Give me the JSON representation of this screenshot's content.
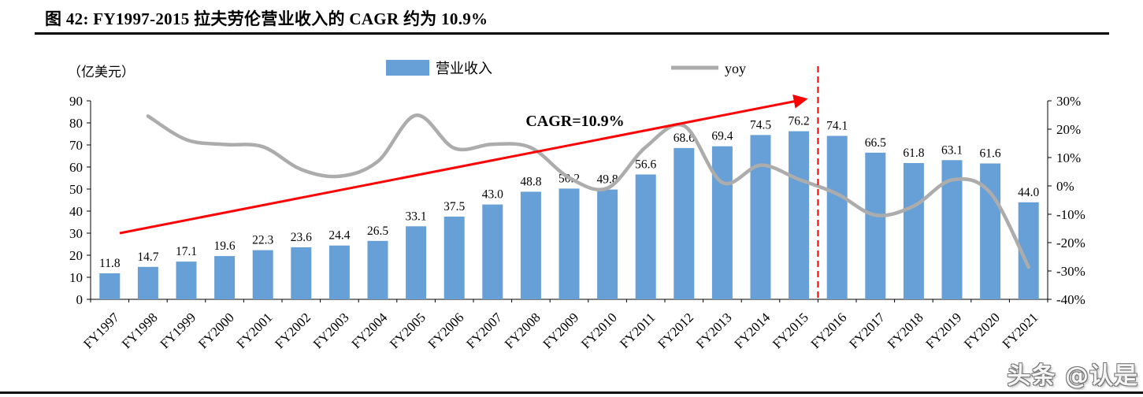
{
  "page": {
    "title": "图 42:  FY1997-2015 拉夫劳伦营业收入的 CAGR 约为 10.9%",
    "watermark": "头条 @认是"
  },
  "chart_data": {
    "type": "bar",
    "unit_label": "（亿美元）",
    "categories": [
      "FY1997",
      "FY1998",
      "FY1999",
      "FY2000",
      "FY2001",
      "FY2002",
      "FY2003",
      "FY2004",
      "FY2005",
      "FY2006",
      "FY2007",
      "FY2008",
      "FY2009",
      "FY2010",
      "FY2011",
      "FY2012",
      "FY2013",
      "FY2014",
      "FY2015",
      "FY2016",
      "FY2017",
      "FY2018",
      "FY2019",
      "FY2020",
      "FY2021"
    ],
    "series": [
      {
        "name": "营业收入",
        "type": "bar",
        "axis": "left",
        "color": "#67A0D6",
        "values": [
          11.8,
          14.7,
          17.1,
          19.6,
          22.3,
          23.6,
          24.4,
          26.5,
          33.1,
          37.5,
          43.0,
          48.8,
          50.2,
          49.8,
          56.6,
          68.6,
          69.4,
          74.5,
          76.2,
          74.1,
          66.5,
          61.8,
          63.1,
          61.6,
          44.0
        ],
        "labels": [
          "11.8",
          "14.7",
          "17.1",
          "19.6",
          "22.3",
          "23.6",
          "24.4",
          "26.5",
          "33.1",
          "37.5",
          "43.0",
          "48.8",
          "50.2",
          "49.8",
          "56.6",
          "68.6",
          "69.4",
          "74.5",
          "76.2",
          "74.1",
          "66.5",
          "61.8",
          "63.1",
          "61.6",
          "44.0"
        ]
      },
      {
        "name": "yoy",
        "type": "line",
        "axis": "right",
        "color": "#ACACAC",
        "values": [
          null,
          24.6,
          16.3,
          14.6,
          13.8,
          5.8,
          3.4,
          8.6,
          24.9,
          13.3,
          14.7,
          13.5,
          2.9,
          -0.8,
          13.7,
          21.2,
          1.2,
          7.3,
          2.3,
          -2.8,
          -10.3,
          -7.1,
          2.1,
          -2.4,
          -28.6
        ]
      }
    ],
    "left_axis": {
      "min": 0,
      "max": 90,
      "ticks": [
        "90",
        "80",
        "70",
        "60",
        "50",
        "40",
        "30",
        "20",
        "10",
        "0"
      ]
    },
    "right_axis": {
      "min": -40,
      "max": 30,
      "ticks": [
        "30%",
        "20%",
        "10%",
        "0%",
        "-10%",
        "-20%",
        "-30%",
        "-40%"
      ]
    },
    "legend": [
      {
        "label": "营业收入",
        "swatch": "bar"
      },
      {
        "label": "yoy",
        "swatch": "line"
      }
    ],
    "annotations": {
      "cagr_label": "CAGR=10.9%",
      "cagr_color": "#FF0000",
      "trend_arrow_color": "#FF0000",
      "divider_after_category": "FY2015",
      "divider_color": "#FF0000"
    }
  }
}
